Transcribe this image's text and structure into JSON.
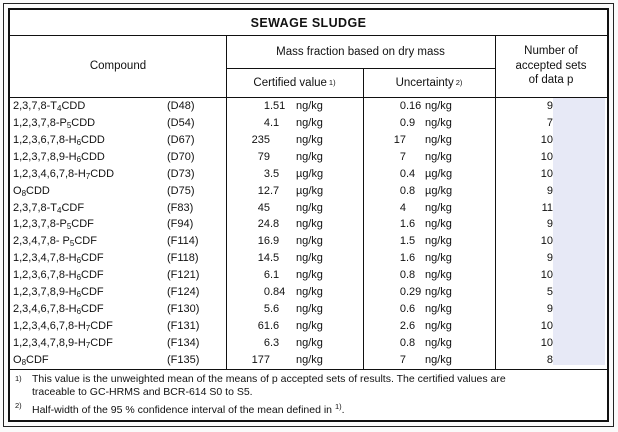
{
  "title": "SEWAGE SLUDGE",
  "header": {
    "compound": "Compound",
    "mass_fraction": "Mass fraction based on dry mass",
    "certified": {
      "label": "Certified value",
      "sup": "1)"
    },
    "uncertainty": {
      "label": "Uncertainty",
      "sup": "2)"
    },
    "accepted_lines": [
      "Number of",
      "accepted sets",
      "of data p"
    ]
  },
  "rows": [
    {
      "compound": "2,3,7,8-T{4}CDD",
      "code": "(D48)",
      "certified": "1.51",
      "certified_unit": "ng/kg",
      "uncertainty": "0.16",
      "uncertainty_unit": "ng/kg",
      "p": "9"
    },
    {
      "compound": "1,2,3,7,8-P{5}CDD",
      "code": "(D54)",
      "certified": "4.1",
      "certified_unit": "ng/kg",
      "uncertainty": "0.9",
      "uncertainty_unit": "ng/kg",
      "p": "7"
    },
    {
      "compound": "1,2,3,6,7,8-H{6}CDD",
      "code": "(D67)",
      "certified": "235",
      "certified_unit": "ng/kg",
      "uncertainty": "17",
      "uncertainty_unit": "ng/kg",
      "p": "10"
    },
    {
      "compound": "1,2,3,7,8,9-H{6}CDD",
      "code": "(D70)",
      "certified": "79",
      "certified_unit": "ng/kg",
      "uncertainty": "7",
      "uncertainty_unit": "ng/kg",
      "p": "10"
    },
    {
      "compound": "1,2,3,4,6,7,8-H{7}CDD",
      "code": "(D73)",
      "certified": "3.5",
      "certified_unit": "µg/kg",
      "uncertainty": "0.4",
      "uncertainty_unit": "µg/kg",
      "p": "10"
    },
    {
      "compound": "O{8}CDD",
      "code": "(D75)",
      "certified": "12.7",
      "certified_unit": "µg/kg",
      "uncertainty": "0.8",
      "uncertainty_unit": "µg/kg",
      "p": "9"
    },
    {
      "compound": "2,3,7,8-T{4}CDF",
      "code": "(F83)",
      "certified": "45",
      "certified_unit": "ng/kg",
      "uncertainty": "4",
      "uncertainty_unit": "ng/kg",
      "p": "11"
    },
    {
      "compound": "1,2,3,7,8-P{5}CDF",
      "code": "(F94)",
      "certified": "24.8",
      "certified_unit": "ng/kg",
      "uncertainty": "1.6",
      "uncertainty_unit": "ng/kg",
      "p": "9"
    },
    {
      "compound": "2,3,4,7,8- P{5}CDF",
      "code": "(F114)",
      "certified": "16.9",
      "certified_unit": "ng/kg",
      "uncertainty": "1.5",
      "uncertainty_unit": "ng/kg",
      "p": "10"
    },
    {
      "compound": "1,2,3,4,7,8-H{6}CDF",
      "code": "(F118)",
      "certified": "14.5",
      "certified_unit": "ng/kg",
      "uncertainty": "1.6",
      "uncertainty_unit": "ng/kg",
      "p": "9"
    },
    {
      "compound": "1,2,3,6,7,8-H{6}CDF",
      "code": "(F121)",
      "certified": "6.1",
      "certified_unit": "ng/kg",
      "uncertainty": "0.8",
      "uncertainty_unit": "ng/kg",
      "p": "10"
    },
    {
      "compound": "1,2,3,7,8,9-H{6}CDF",
      "code": "(F124)",
      "certified": "0.84",
      "certified_unit": "ng/kg",
      "uncertainty": "0.29",
      "uncertainty_unit": "ng/kg",
      "p": "5"
    },
    {
      "compound": "2,3,4,6,7,8-H{6}CDF",
      "code": "(F130)",
      "certified": "5.6",
      "certified_unit": "ng/kg",
      "uncertainty": "0.6",
      "uncertainty_unit": "ng/kg",
      "p": "9"
    },
    {
      "compound": "1,2,3,4,6,7,8-H{7}CDF",
      "code": "(F131)",
      "certified": "61.6",
      "certified_unit": "ng/kg",
      "uncertainty": "2.6",
      "uncertainty_unit": "ng/kg",
      "p": "10"
    },
    {
      "compound": "1,2,3,4,7,8,9-H{7}CDF",
      "code": "(F134)",
      "certified": "6.3",
      "certified_unit": "ng/kg",
      "uncertainty": "0.8",
      "uncertainty_unit": "ng/kg",
      "p": "10"
    },
    {
      "compound": "O{8}CDF",
      "code": "(F135)",
      "certified": "177",
      "certified_unit": "ng/kg",
      "uncertainty": "7",
      "uncertainty_unit": "ng/kg",
      "p": "8"
    }
  ],
  "footnotes": [
    {
      "marker": "1)",
      "lines": [
        "This value is the unweighted mean of the means of p accepted sets of results. The certified values are",
        "traceable to GC-HRMS and BCR-614 S0 to S5."
      ],
      "ref": "",
      "tail": ""
    },
    {
      "marker": "2)",
      "lines": [
        "Half-width of the 95 % confidence interval of the mean defined in "
      ],
      "ref": "1)",
      "tail": "."
    }
  ],
  "colors": {
    "highlight": "#e7e9f6",
    "border": "#111111",
    "text": "#111111",
    "page_background": "#fafafa",
    "table_background": "#ffffff"
  }
}
